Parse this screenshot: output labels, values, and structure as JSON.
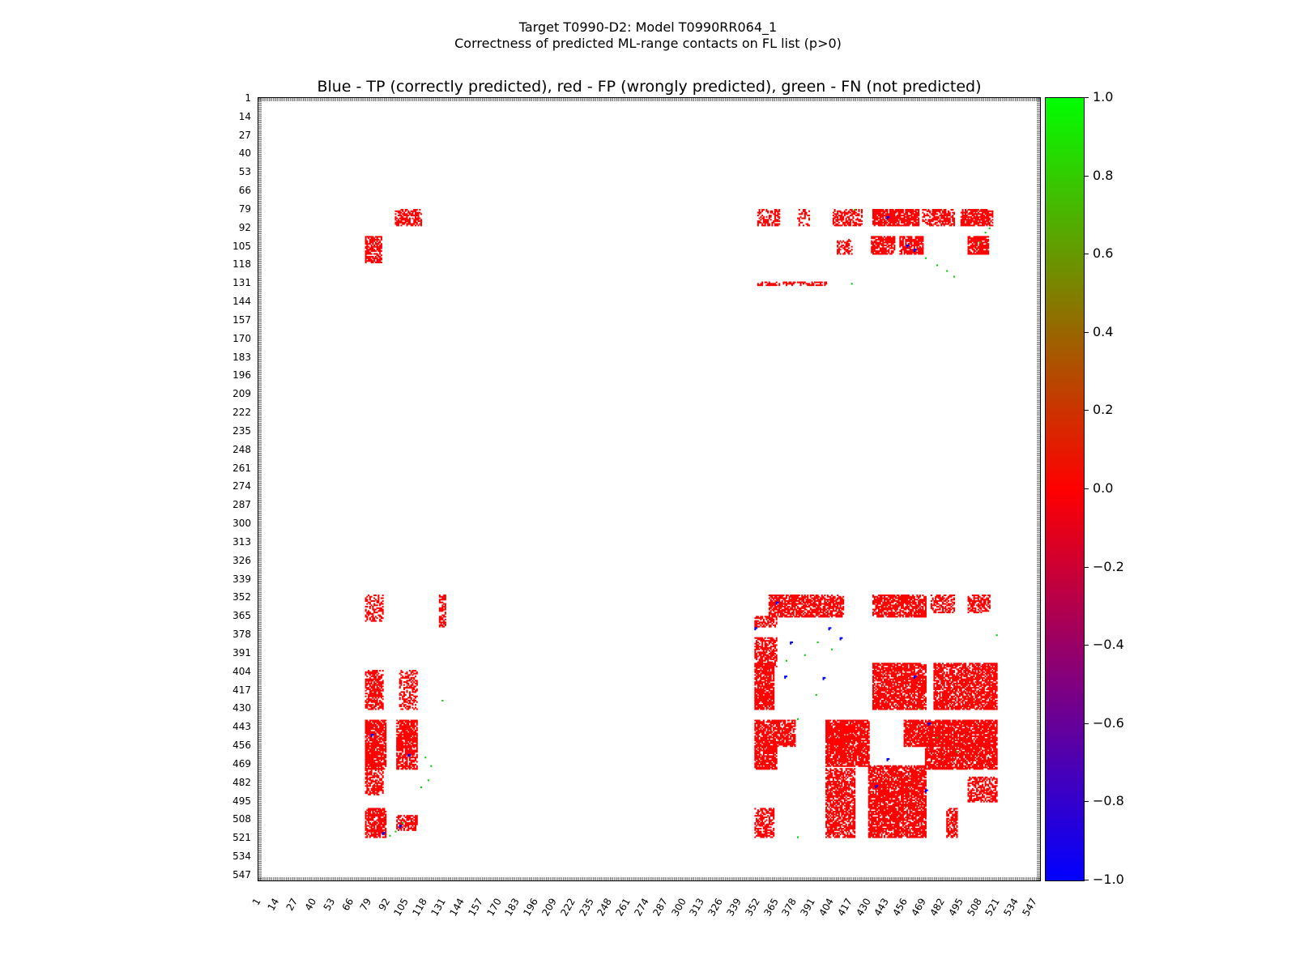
{
  "title_line1": "Target T0990-D2: Model T0990RR064_1",
  "title_line2": "Correctness of predicted ML-range contacts on FL list (p>0)",
  "chart_data": {
    "type": "heatmap",
    "title": "Blue - TP (correctly predicted), red - FP (wrongly predicted), green - FN (not predicted)",
    "residue_count": 550,
    "ticks": [
      1,
      14,
      27,
      40,
      53,
      66,
      79,
      92,
      105,
      118,
      131,
      144,
      157,
      170,
      183,
      196,
      209,
      222,
      235,
      248,
      261,
      274,
      287,
      300,
      313,
      326,
      339,
      352,
      365,
      378,
      391,
      404,
      417,
      430,
      443,
      456,
      469,
      482,
      495,
      508,
      521,
      534,
      547
    ],
    "colorbar": {
      "range": [
        -1.0,
        1.0
      ],
      "tick_labels": [
        "1.0",
        "0.8",
        "0.6",
        "0.4",
        "0.2",
        "0.0",
        "−0.2",
        "−0.4",
        "−0.6",
        "−0.8",
        "−1.0"
      ],
      "tick_values": [
        1.0,
        0.8,
        0.6,
        0.4,
        0.2,
        0.0,
        -0.2,
        -0.4,
        -0.6,
        -0.8,
        -1.0
      ],
      "colors": [
        "#00ff00",
        "#ff0000",
        "#0000ff"
      ]
    },
    "legend": {
      "TP": "blue",
      "FP": "red",
      "FN": "green"
    },
    "fp_regions": [
      {
        "rows": [
          79,
          90
        ],
        "cols": [
          97,
          115
        ],
        "density": 0.55
      },
      {
        "rows": [
          79,
          90
        ],
        "cols": [
          352,
          367
        ],
        "density": 0.5
      },
      {
        "rows": [
          79,
          90
        ],
        "cols": [
          380,
          388
        ],
        "density": 0.35
      },
      {
        "rows": [
          79,
          90
        ],
        "cols": [
          405,
          425
        ],
        "density": 0.55
      },
      {
        "rows": [
          79,
          90
        ],
        "cols": [
          433,
          465
        ],
        "density": 0.85
      },
      {
        "rows": [
          79,
          90
        ],
        "cols": [
          468,
          490
        ],
        "density": 0.6
      },
      {
        "rows": [
          79,
          90
        ],
        "cols": [
          495,
          517
        ],
        "density": 0.8
      },
      {
        "rows": [
          98,
          116
        ],
        "cols": [
          76,
          87
        ],
        "density": 0.75
      },
      {
        "rows": [
          100,
          110
        ],
        "cols": [
          408,
          418
        ],
        "density": 0.5
      },
      {
        "rows": [
          98,
          110
        ],
        "cols": [
          432,
          448
        ],
        "density": 0.75
      },
      {
        "rows": [
          98,
          110
        ],
        "cols": [
          452,
          468
        ],
        "density": 0.8
      },
      {
        "rows": [
          98,
          110
        ],
        "cols": [
          500,
          514
        ],
        "density": 0.8
      },
      {
        "rows": [
          130,
          132
        ],
        "cols": [
          352,
          400
        ],
        "density": 0.6
      },
      {
        "rows": [
          350,
          368
        ],
        "cols": [
          76,
          88
        ],
        "density": 0.45
      },
      {
        "rows": [
          350,
          372
        ],
        "cols": [
          128,
          132
        ],
        "density": 0.5
      },
      {
        "rows": [
          350,
          365
        ],
        "cols": [
          360,
          412
        ],
        "density": 0.7
      },
      {
        "rows": [
          350,
          365
        ],
        "cols": [
          433,
          470
        ],
        "density": 0.75
      },
      {
        "rows": [
          350,
          362
        ],
        "cols": [
          474,
          490
        ],
        "density": 0.55
      },
      {
        "rows": [
          350,
          362
        ],
        "cols": [
          500,
          515
        ],
        "density": 0.55
      },
      {
        "rows": [
          365,
          372
        ],
        "cols": [
          350,
          365
        ],
        "density": 0.6
      },
      {
        "rows": [
          380,
          400
        ],
        "cols": [
          350,
          365
        ],
        "density": 0.7
      },
      {
        "rows": [
          398,
          430
        ],
        "cols": [
          350,
          363
        ],
        "density": 0.8
      },
      {
        "rows": [
          403,
          430
        ],
        "cols": [
          76,
          88
        ],
        "density": 0.65
      },
      {
        "rows": [
          403,
          430
        ],
        "cols": [
          100,
          112
        ],
        "density": 0.45
      },
      {
        "rows": [
          398,
          430
        ],
        "cols": [
          433,
          470
        ],
        "density": 0.8
      },
      {
        "rows": [
          398,
          430
        ],
        "cols": [
          476,
          520
        ],
        "density": 0.75
      },
      {
        "rows": [
          438,
          456
        ],
        "cols": [
          76,
          90
        ],
        "density": 0.85
      },
      {
        "rows": [
          438,
          456
        ],
        "cols": [
          98,
          112
        ],
        "density": 0.8
      },
      {
        "rows": [
          438,
          456
        ],
        "cols": [
          350,
          378
        ],
        "density": 0.75
      },
      {
        "rows": [
          438,
          470
        ],
        "cols": [
          400,
          430
        ],
        "density": 0.85
      },
      {
        "rows": [
          438,
          456
        ],
        "cols": [
          455,
          520
        ],
        "density": 0.85
      },
      {
        "rows": [
          456,
          472
        ],
        "cols": [
          76,
          90
        ],
        "density": 0.85
      },
      {
        "rows": [
          456,
          472
        ],
        "cols": [
          98,
          112
        ],
        "density": 0.8
      },
      {
        "rows": [
          456,
          472
        ],
        "cols": [
          350,
          365
        ],
        "density": 0.8
      },
      {
        "rows": [
          456,
          472
        ],
        "cols": [
          470,
          520
        ],
        "density": 0.8
      },
      {
        "rows": [
          472,
          490
        ],
        "cols": [
          76,
          88
        ],
        "density": 0.6
      },
      {
        "rows": [
          472,
          520
        ],
        "cols": [
          400,
          420
        ],
        "density": 0.7
      },
      {
        "rows": [
          470,
          520
        ],
        "cols": [
          430,
          470
        ],
        "density": 0.8
      },
      {
        "rows": [
          478,
          495
        ],
        "cols": [
          500,
          520
        ],
        "density": 0.6
      },
      {
        "rows": [
          500,
          520
        ],
        "cols": [
          76,
          90
        ],
        "density": 0.75
      },
      {
        "rows": [
          505,
          515
        ],
        "cols": [
          98,
          112
        ],
        "density": 0.7
      },
      {
        "rows": [
          500,
          520
        ],
        "cols": [
          350,
          363
        ],
        "density": 0.6
      },
      {
        "rows": [
          500,
          520
        ],
        "cols": [
          485,
          492
        ],
        "density": 0.7
      }
    ],
    "tp_points": [
      [
        84,
        443
      ],
      [
        104,
        457
      ],
      [
        107,
        462
      ],
      [
        355,
        365
      ],
      [
        373,
        350
      ],
      [
        373,
        402
      ],
      [
        380,
        410
      ],
      [
        383,
        375
      ],
      [
        407,
        371
      ],
      [
        408,
        398
      ],
      [
        440,
        472
      ],
      [
        448,
        80
      ],
      [
        462,
        106
      ],
      [
        465,
        443
      ],
      [
        484,
        435
      ],
      [
        487,
        470
      ],
      [
        512,
        100
      ],
      [
        517,
        88
      ],
      [
        407,
        462
      ]
    ],
    "fn_points": [
      [
        79,
        420
      ],
      [
        92,
        515
      ],
      [
        95,
        512
      ],
      [
        102,
        508
      ],
      [
        113,
        470
      ],
      [
        118,
        478
      ],
      [
        122,
        485
      ],
      [
        126,
        490
      ],
      [
        131,
        418
      ],
      [
        378,
        520
      ],
      [
        383,
        394
      ],
      [
        388,
        404
      ],
      [
        392,
        385
      ],
      [
        396,
        372
      ],
      [
        420,
        393
      ],
      [
        424,
        130
      ],
      [
        430,
        466
      ],
      [
        437,
        380
      ],
      [
        450,
        478
      ],
      [
        460,
        492
      ],
      [
        464,
        118
      ],
      [
        470,
        122
      ],
      [
        480,
        120
      ],
      [
        485,
        115
      ],
      [
        519,
        93
      ],
      [
        516,
        97
      ],
      [
        510,
        102
      ],
      [
        520,
        380
      ]
    ]
  }
}
